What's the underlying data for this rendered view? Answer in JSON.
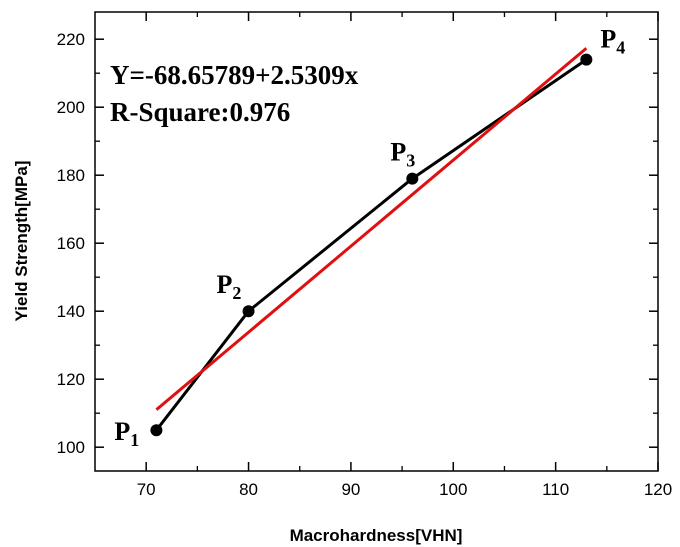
{
  "chart_data": {
    "type": "line",
    "xlabel": "Macrohardness[VHN]",
    "ylabel": "Yield Strength[MPa]",
    "xlim": [
      65,
      120
    ],
    "ylim": [
      93,
      228
    ],
    "x_ticks": [
      "70",
      "80",
      "90",
      "100",
      "110",
      "120"
    ],
    "y_ticks": [
      "100",
      "120",
      "140",
      "160",
      "180",
      "200",
      "220"
    ],
    "grid": false,
    "series": [
      {
        "type": "line-markers",
        "color": "#000000",
        "points": [
          {
            "x": 71,
            "y": 105,
            "label_base": "P",
            "label_sub": "1"
          },
          {
            "x": 80,
            "y": 140,
            "label_base": "P",
            "label_sub": "2"
          },
          {
            "x": 96,
            "y": 179,
            "label_base": "P",
            "label_sub": "3"
          },
          {
            "x": 113,
            "y": 214,
            "label_base": "P",
            "label_sub": "4"
          }
        ]
      },
      {
        "type": "fit-line",
        "color": "#e01010",
        "intercept": -68.65789,
        "slope": 2.5309,
        "x_range": [
          71,
          113
        ]
      }
    ],
    "annotations": [
      "Y=-68.65789+2.5309x",
      "R-Square:0.976"
    ]
  }
}
